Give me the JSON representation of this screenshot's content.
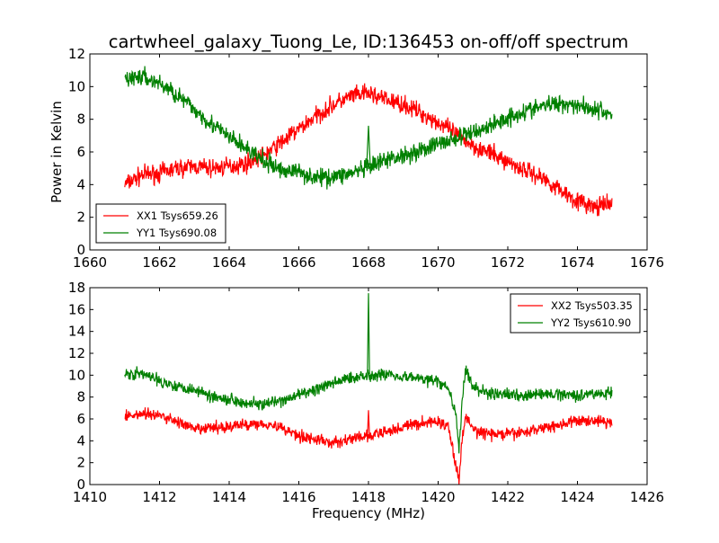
{
  "figure": {
    "title": "cartwheel_galaxy_Tuong_Le, ID:136453 on-off/off spectrum"
  },
  "chart_data": [
    {
      "type": "line",
      "title": "cartwheel_galaxy_Tuong_Le, ID:136453 on-off/off spectrum",
      "xlabel": "",
      "ylabel": "Power in Kelvin",
      "xlim": [
        1660,
        1676
      ],
      "ylim": [
        0,
        12
      ],
      "xticks": [
        1660,
        1662,
        1664,
        1666,
        1668,
        1670,
        1672,
        1674,
        1676
      ],
      "yticks": [
        0,
        2,
        4,
        6,
        8,
        10,
        12
      ],
      "grid": false,
      "legend_position": "lower-left",
      "series": [
        {
          "name": "XX1 Tsys659.26",
          "color": "#ff0000",
          "x": [
            1661.0,
            1661.5,
            1662.0,
            1662.5,
            1663.0,
            1663.5,
            1664.0,
            1664.5,
            1665.0,
            1665.5,
            1666.0,
            1666.5,
            1667.0,
            1667.5,
            1668.0,
            1668.5,
            1669.0,
            1669.5,
            1670.0,
            1670.5,
            1671.0,
            1671.5,
            1672.0,
            1672.5,
            1673.0,
            1673.5,
            1674.0,
            1674.5,
            1675.0
          ],
          "y": [
            4.0,
            4.6,
            4.7,
            5.0,
            5.1,
            5.0,
            5.1,
            5.3,
            5.8,
            6.6,
            7.4,
            8.2,
            8.9,
            9.4,
            9.6,
            9.2,
            8.9,
            8.4,
            7.8,
            7.1,
            6.4,
            5.9,
            5.4,
            4.9,
            4.4,
            3.7,
            3.0,
            2.6,
            2.8
          ]
        },
        {
          "name": "YY1 Tsys690.08",
          "color": "#008000",
          "x": [
            1661.0,
            1661.5,
            1662.0,
            1662.5,
            1663.0,
            1663.5,
            1664.0,
            1664.5,
            1665.0,
            1665.5,
            1666.0,
            1666.5,
            1667.0,
            1667.5,
            1668.0,
            1668.5,
            1669.0,
            1669.5,
            1670.0,
            1670.5,
            1671.0,
            1671.5,
            1672.0,
            1672.5,
            1673.0,
            1673.5,
            1674.0,
            1674.5,
            1675.0
          ],
          "y": [
            10.5,
            10.6,
            10.2,
            9.5,
            8.6,
            7.7,
            6.9,
            6.2,
            5.4,
            4.9,
            4.8,
            4.4,
            4.5,
            4.7,
            5.0,
            5.5,
            5.8,
            6.1,
            6.5,
            6.8,
            7.2,
            7.6,
            8.1,
            8.5,
            8.8,
            9.0,
            8.9,
            8.6,
            8.3
          ]
        }
      ]
    },
    {
      "type": "line",
      "title": "",
      "xlabel": "Frequency (MHz)",
      "ylabel": "",
      "xlim": [
        1410,
        1426
      ],
      "ylim": [
        0,
        18
      ],
      "xticks": [
        1410,
        1412,
        1414,
        1416,
        1418,
        1420,
        1422,
        1424,
        1426
      ],
      "yticks": [
        0,
        2,
        4,
        6,
        8,
        10,
        12,
        14,
        16,
        18
      ],
      "grid": false,
      "legend_position": "upper-right",
      "series": [
        {
          "name": "XX2 Tsys503.35",
          "color": "#ff0000",
          "x": [
            1411.0,
            1411.5,
            1412.0,
            1412.5,
            1413.0,
            1413.5,
            1414.0,
            1414.5,
            1415.0,
            1415.5,
            1416.0,
            1416.5,
            1417.0,
            1417.5,
            1418.0,
            1418.5,
            1419.0,
            1419.5,
            1420.0,
            1420.3,
            1420.5,
            1420.6,
            1420.7,
            1420.8,
            1421.0,
            1421.5,
            1422.0,
            1422.5,
            1423.0,
            1423.5,
            1424.0,
            1424.5,
            1425.0
          ],
          "y": [
            6.2,
            6.5,
            6.3,
            5.8,
            5.0,
            5.2,
            5.3,
            5.5,
            5.6,
            5.2,
            4.5,
            4.1,
            3.8,
            4.2,
            4.4,
            4.8,
            5.3,
            5.6,
            5.8,
            5.2,
            2.0,
            0.3,
            4.5,
            6.3,
            5.0,
            4.6,
            4.6,
            4.8,
            5.2,
            5.5,
            5.8,
            5.9,
            5.6
          ]
        },
        {
          "name": "YY2 Tsys610.90",
          "color": "#008000",
          "x": [
            1411.0,
            1411.5,
            1412.0,
            1412.5,
            1413.0,
            1413.5,
            1414.0,
            1414.5,
            1415.0,
            1415.5,
            1416.0,
            1416.5,
            1417.0,
            1417.5,
            1418.0,
            1418.5,
            1419.0,
            1419.5,
            1420.0,
            1420.3,
            1420.5,
            1420.6,
            1420.7,
            1420.8,
            1421.0,
            1421.5,
            1422.0,
            1422.5,
            1423.0,
            1423.5,
            1424.0,
            1424.5,
            1425.0
          ],
          "y": [
            10.2,
            10.1,
            9.5,
            9.0,
            8.7,
            8.1,
            7.8,
            7.5,
            7.3,
            7.6,
            8.2,
            8.7,
            9.3,
            9.8,
            10.0,
            10.1,
            9.9,
            9.7,
            9.4,
            8.8,
            6.5,
            3.4,
            8.0,
            10.5,
            8.9,
            8.3,
            8.2,
            8.2,
            8.2,
            8.3,
            8.2,
            8.3,
            8.4
          ]
        }
      ]
    }
  ]
}
